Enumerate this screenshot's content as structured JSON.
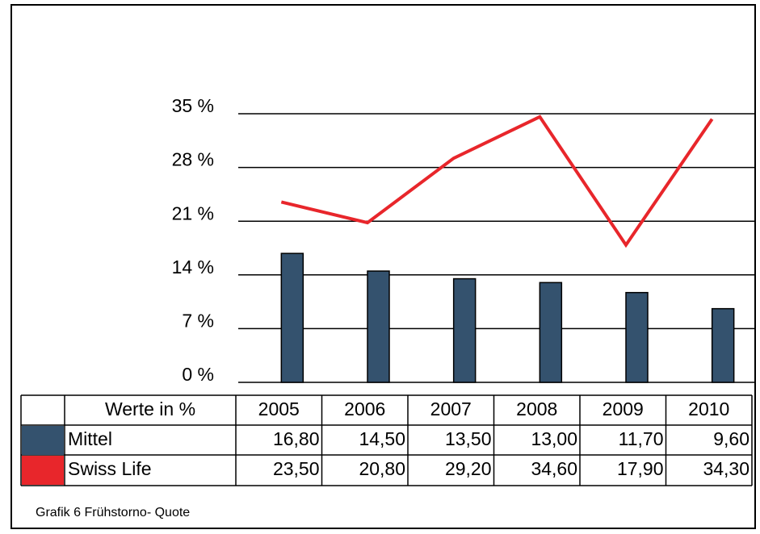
{
  "chart_data": {
    "type": "bar_line",
    "categories": [
      "2005",
      "2006",
      "2007",
      "2008",
      "2009",
      "2010"
    ],
    "table_header": "Werte in %",
    "series": [
      {
        "name": "Mittel",
        "type": "bar",
        "color": "#34526e",
        "values": [
          16.8,
          14.5,
          13.5,
          13.0,
          11.7,
          9.6
        ],
        "value_labels": [
          "16,80",
          "14,50",
          "13,50",
          "13,00",
          "11,70",
          "9,60"
        ]
      },
      {
        "name": "Swiss Life",
        "type": "line",
        "color": "#e8262b",
        "values": [
          23.5,
          20.8,
          29.2,
          34.6,
          17.9,
          34.3
        ],
        "value_labels": [
          "23,50",
          "20,80",
          "29,20",
          "34,60",
          "17,90",
          "34,30"
        ]
      }
    ],
    "ylim": [
      0,
      35
    ],
    "yticks": [
      {
        "value": 0,
        "label": "0 %"
      },
      {
        "value": 7,
        "label": "7 %"
      },
      {
        "value": 14,
        "label": "14 %"
      },
      {
        "value": 21,
        "label": "21 %"
      },
      {
        "value": 28,
        "label": "28 %"
      },
      {
        "value": 35,
        "label": "35 %"
      }
    ],
    "grid": true,
    "caption": "Grafik 6 Frühstorno- Quote"
  }
}
